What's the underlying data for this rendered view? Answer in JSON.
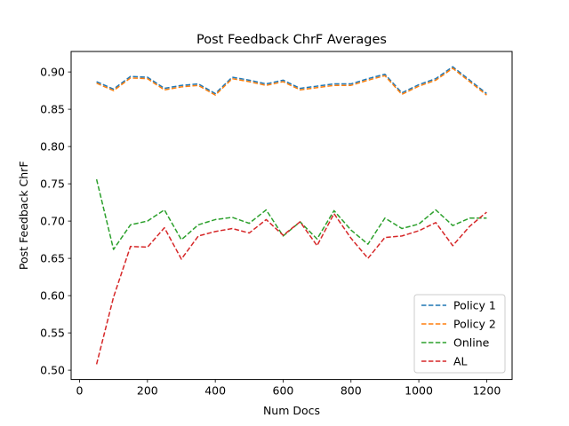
{
  "chart_data": {
    "type": "line",
    "title": "Post Feedback ChrF Averages",
    "xlabel": "Num Docs",
    "ylabel": "Post Feedback ChrF",
    "xlim": [
      -25,
      1275
    ],
    "ylim": [
      0.4875,
      0.9275
    ],
    "xticks": [
      0,
      200,
      400,
      600,
      800,
      1000,
      1200
    ],
    "yticks": [
      0.5,
      0.55,
      0.6,
      0.65,
      0.7,
      0.75,
      0.8,
      0.85,
      0.9
    ],
    "grid": false,
    "legend_position": "lower-right",
    "x": [
      50,
      100,
      150,
      200,
      250,
      300,
      350,
      400,
      450,
      500,
      550,
      600,
      650,
      700,
      750,
      800,
      850,
      900,
      950,
      1000,
      1050,
      1100,
      1150,
      1200
    ],
    "series": [
      {
        "name": "Policy 1",
        "color": "#1f77b4",
        "values": [
          0.887,
          0.877,
          0.894,
          0.893,
          0.878,
          0.882,
          0.884,
          0.871,
          0.893,
          0.889,
          0.884,
          0.889,
          0.878,
          0.881,
          0.884,
          0.884,
          0.891,
          0.897,
          0.872,
          0.883,
          0.891,
          0.907,
          0.889,
          0.871
        ]
      },
      {
        "name": "Policy 2",
        "color": "#ff7f0e",
        "values": [
          0.885,
          0.875,
          0.892,
          0.891,
          0.876,
          0.88,
          0.882,
          0.869,
          0.891,
          0.887,
          0.882,
          0.887,
          0.876,
          0.879,
          0.882,
          0.882,
          0.889,
          0.895,
          0.87,
          0.881,
          0.889,
          0.905,
          0.887,
          0.869
        ]
      },
      {
        "name": "Online",
        "color": "#2ca02c",
        "values": [
          0.756,
          0.662,
          0.695,
          0.7,
          0.715,
          0.675,
          0.695,
          0.702,
          0.705,
          0.697,
          0.715,
          0.68,
          0.699,
          0.676,
          0.714,
          0.688,
          0.669,
          0.704,
          0.69,
          0.696,
          0.715,
          0.694,
          0.704,
          0.704
        ]
      },
      {
        "name": "AL",
        "color": "#d62728",
        "values": [
          0.508,
          0.598,
          0.666,
          0.665,
          0.691,
          0.649,
          0.68,
          0.686,
          0.69,
          0.684,
          0.702,
          0.681,
          0.699,
          0.667,
          0.71,
          0.677,
          0.65,
          0.678,
          0.68,
          0.687,
          0.698,
          0.667,
          0.693,
          0.712
        ]
      }
    ]
  }
}
